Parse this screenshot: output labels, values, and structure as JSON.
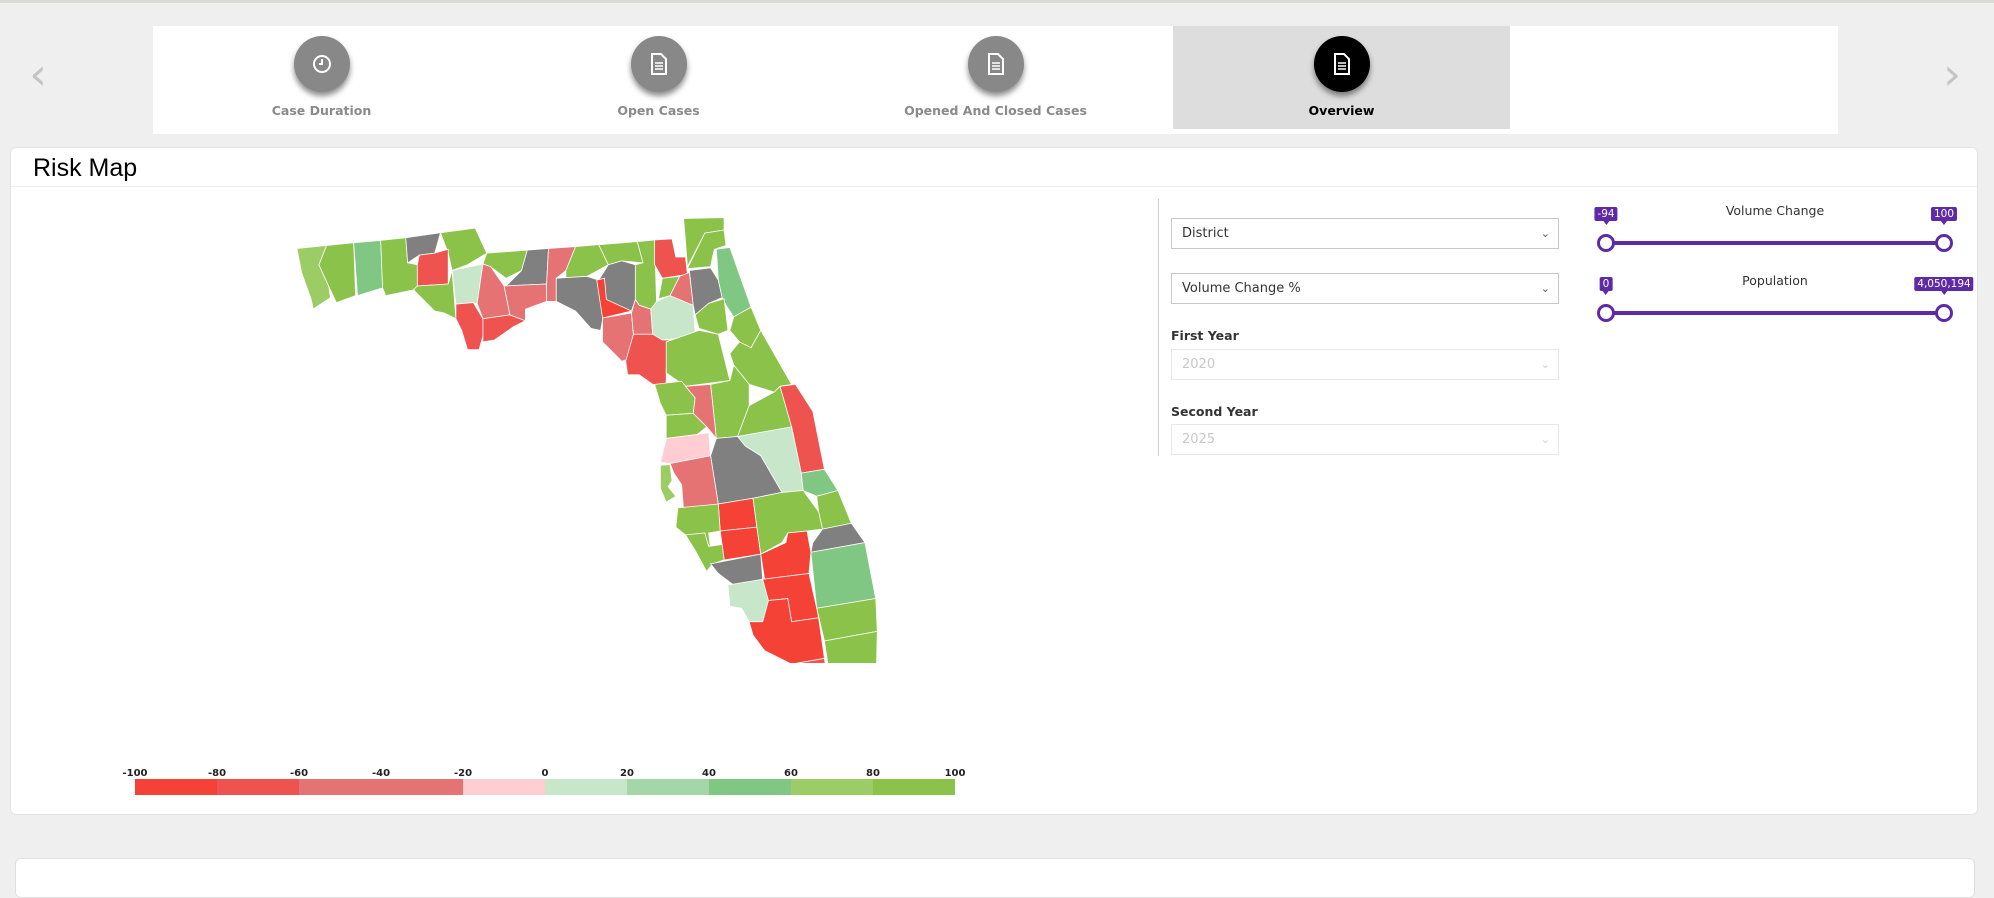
{
  "nav": {
    "prev_icon": "chevron-left-icon",
    "next_icon": "chevron-right-icon",
    "tabs": [
      {
        "label": "Case Duration",
        "icon": "clock-icon",
        "active": false
      },
      {
        "label": "Open Cases",
        "icon": "document-icon",
        "active": false
      },
      {
        "label": "Opened And Closed Cases",
        "icon": "document-icon",
        "active": false
      },
      {
        "label": "Overview",
        "icon": "document-icon",
        "active": true
      }
    ]
  },
  "card": {
    "title": "Risk Map"
  },
  "filters": {
    "group_by": "District",
    "metric": "Volume Change %",
    "first_year_label": "First Year",
    "first_year": "2020",
    "second_year_label": "Second Year",
    "second_year": "2025"
  },
  "sliders": {
    "volume_change": {
      "label": "Volume Change",
      "min": "-94",
      "max": "100"
    },
    "population": {
      "label": "Population",
      "min": "0",
      "max": "4,050,194"
    },
    "accent": "#5e2aa6"
  },
  "legend": {
    "ticks": [
      "-100",
      "-80",
      "-60",
      "-40",
      "-20",
      "0",
      "20",
      "40",
      "60",
      "80",
      "100"
    ],
    "bins": [
      {
        "from": -100,
        "to": -80,
        "color": "#f44336"
      },
      {
        "from": -80,
        "to": -60,
        "color": "#ef5350"
      },
      {
        "from": -60,
        "to": -20,
        "color": "#e57373"
      },
      {
        "from": -20,
        "to": 0,
        "color": "#ffcdd2"
      },
      {
        "from": 0,
        "to": 20,
        "color": "#c8e6c9"
      },
      {
        "from": 20,
        "to": 40,
        "color": "#a5d6a7"
      },
      {
        "from": 40,
        "to": 60,
        "color": "#81c784"
      },
      {
        "from": 60,
        "to": 80,
        "color": "#9ccc65"
      },
      {
        "from": 80,
        "to": 100,
        "color": "#8bc34a"
      }
    ],
    "no_data_color": "#808080"
  }
}
